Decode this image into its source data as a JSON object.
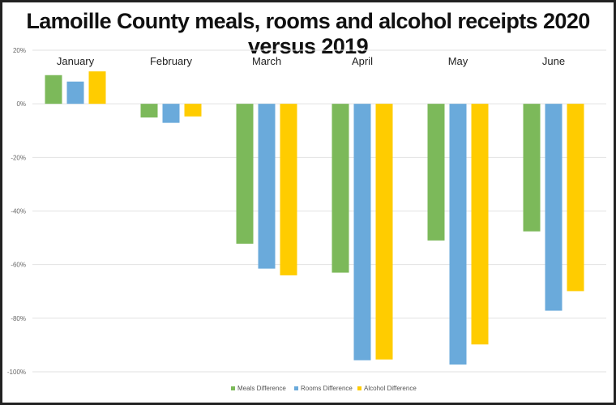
{
  "chart_data": {
    "type": "bar",
    "title": "Lamoille County meals, rooms and alcohol receipts 2020 versus 2019",
    "xlabel": "",
    "ylabel": "",
    "categories": [
      "January",
      "February",
      "March",
      "April",
      "May",
      "June"
    ],
    "series": [
      {
        "name": "Meals Difference",
        "color": "#7cb95a",
        "values": [
          10.7,
          -5.1,
          -52.2,
          -63.0,
          -51.0,
          -47.6
        ]
      },
      {
        "name": "Rooms Difference",
        "color": "#6aaadb",
        "values": [
          8.3,
          -7.1,
          -61.5,
          -95.7,
          -97.3,
          -77.2
        ]
      },
      {
        "name": "Alcohol Difference",
        "color": "#ffcc00",
        "values": [
          12.1,
          -4.7,
          -64.0,
          -95.4,
          -89.8,
          -69.9
        ]
      }
    ],
    "ylim": [
      -100,
      20
    ],
    "yticks": [
      "20%",
      "0%",
      "-20%",
      "-40%",
      "-60%",
      "-80%",
      "-100%"
    ],
    "ytick_values": [
      20,
      0,
      -20,
      -40,
      -60,
      -80,
      -100
    ],
    "grid": true,
    "legend": "bottom",
    "category_labels_position": "top"
  }
}
